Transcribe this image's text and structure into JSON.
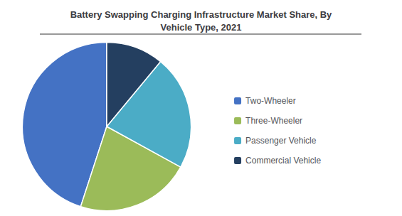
{
  "chart_data": {
    "type": "pie",
    "title": "Battery Swapping Charging Infrastructure Market Share, By\nVehicle Type, 2021",
    "categories": [
      "Two-Wheeler",
      "Three-Wheeler",
      "Passenger Vehicle",
      "Commercial Vehicle"
    ],
    "values": [
      45,
      22,
      22,
      11
    ],
    "colors": [
      "#4472C4",
      "#9BBB59",
      "#4BACC6",
      "#243F60"
    ],
    "legend": "right"
  }
}
